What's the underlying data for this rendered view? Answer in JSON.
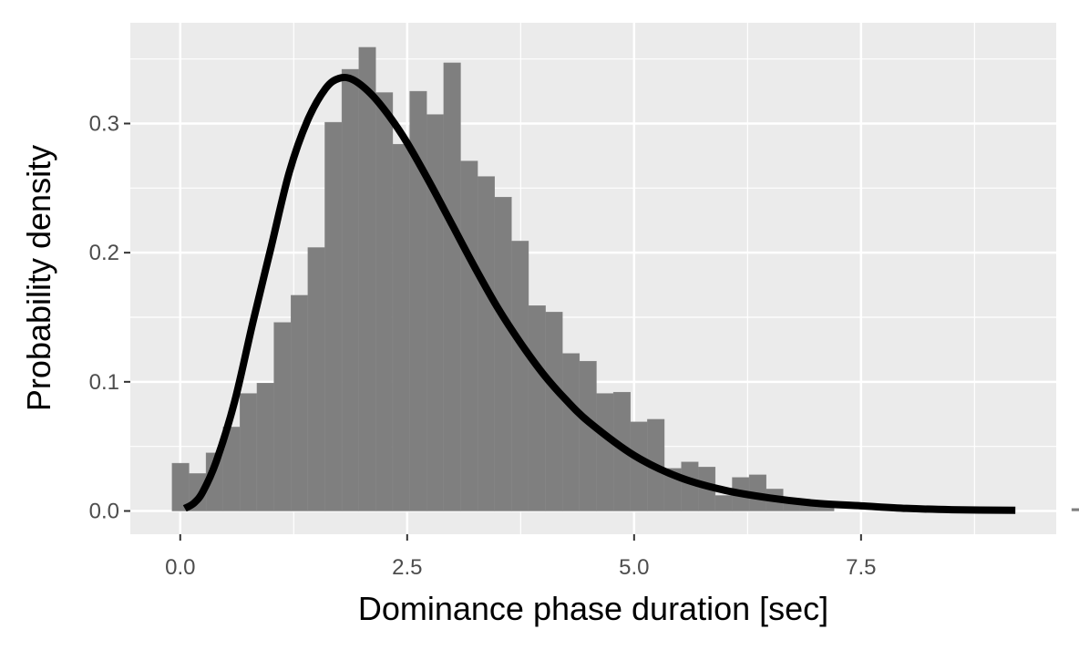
{
  "chart_data": {
    "type": "bar",
    "xlabel": "Dominance phase duration [sec]",
    "ylabel": "Probability density",
    "xlim": [
      -0.55,
      9.65
    ],
    "ylim": [
      -0.018,
      0.378
    ],
    "x_ticks": [
      0.0,
      2.5,
      5.0,
      7.5
    ],
    "x_tick_labels": [
      "0.0",
      "2.5",
      "5.0",
      "7.5"
    ],
    "y_ticks": [
      0.0,
      0.1,
      0.2,
      0.3
    ],
    "y_tick_labels": [
      "0.0",
      "0.1",
      "0.2",
      "0.3"
    ],
    "x_minor_gridlines": [
      1.25,
      3.75,
      6.25,
      8.75
    ],
    "y_minor_gridlines": [
      0.05,
      0.15,
      0.25,
      0.35
    ],
    "grid": true,
    "legend": "none",
    "histogram": {
      "name": "histogram",
      "bin_width": 0.187,
      "bin_start": -0.09,
      "values": [
        0.037,
        0.029,
        0.045,
        0.065,
        0.091,
        0.099,
        0.146,
        0.167,
        0.204,
        0.301,
        0.342,
        0.359,
        0.324,
        0.284,
        0.325,
        0.307,
        0.347,
        0.271,
        0.259,
        0.243,
        0.209,
        0.159,
        0.154,
        0.122,
        0.116,
        0.091,
        0.092,
        0.069,
        0.071,
        0.033,
        0.038,
        0.034,
        0.012,
        0.026,
        0.028,
        0.017,
        0.009,
        0.008,
        0.004,
        0.0,
        0.0,
        0.0,
        0.0,
        0.0,
        0.0,
        0.0,
        0.0,
        0.0,
        0.0,
        0.0,
        0.0,
        0.0,
        0.0,
        0.002
      ],
      "color": "#7f7f7f"
    },
    "density_curve": {
      "name": "fitted density",
      "color": "#000000",
      "x": [
        0.05,
        0.15,
        0.25,
        0.4,
        0.6,
        0.8,
        1.0,
        1.2,
        1.4,
        1.6,
        1.75,
        1.9,
        2.1,
        2.3,
        2.5,
        2.75,
        3.0,
        3.25,
        3.5,
        3.75,
        4.0,
        4.25,
        4.5,
        5.0,
        5.5,
        6.0,
        6.5,
        7.0,
        7.5,
        8.0,
        8.5,
        9.2
      ],
      "y": [
        0.002,
        0.006,
        0.015,
        0.039,
        0.085,
        0.146,
        0.204,
        0.262,
        0.302,
        0.327,
        0.335,
        0.334,
        0.323,
        0.306,
        0.285,
        0.254,
        0.221,
        0.188,
        0.157,
        0.13,
        0.106,
        0.086,
        0.069,
        0.043,
        0.026,
        0.016,
        0.01,
        0.006,
        0.004,
        0.002,
        0.001,
        0.0005
      ]
    },
    "colors": {
      "panel_background": "#ebebeb",
      "gridline": "#ffffff",
      "tick_label": "#4d4d4d"
    }
  }
}
